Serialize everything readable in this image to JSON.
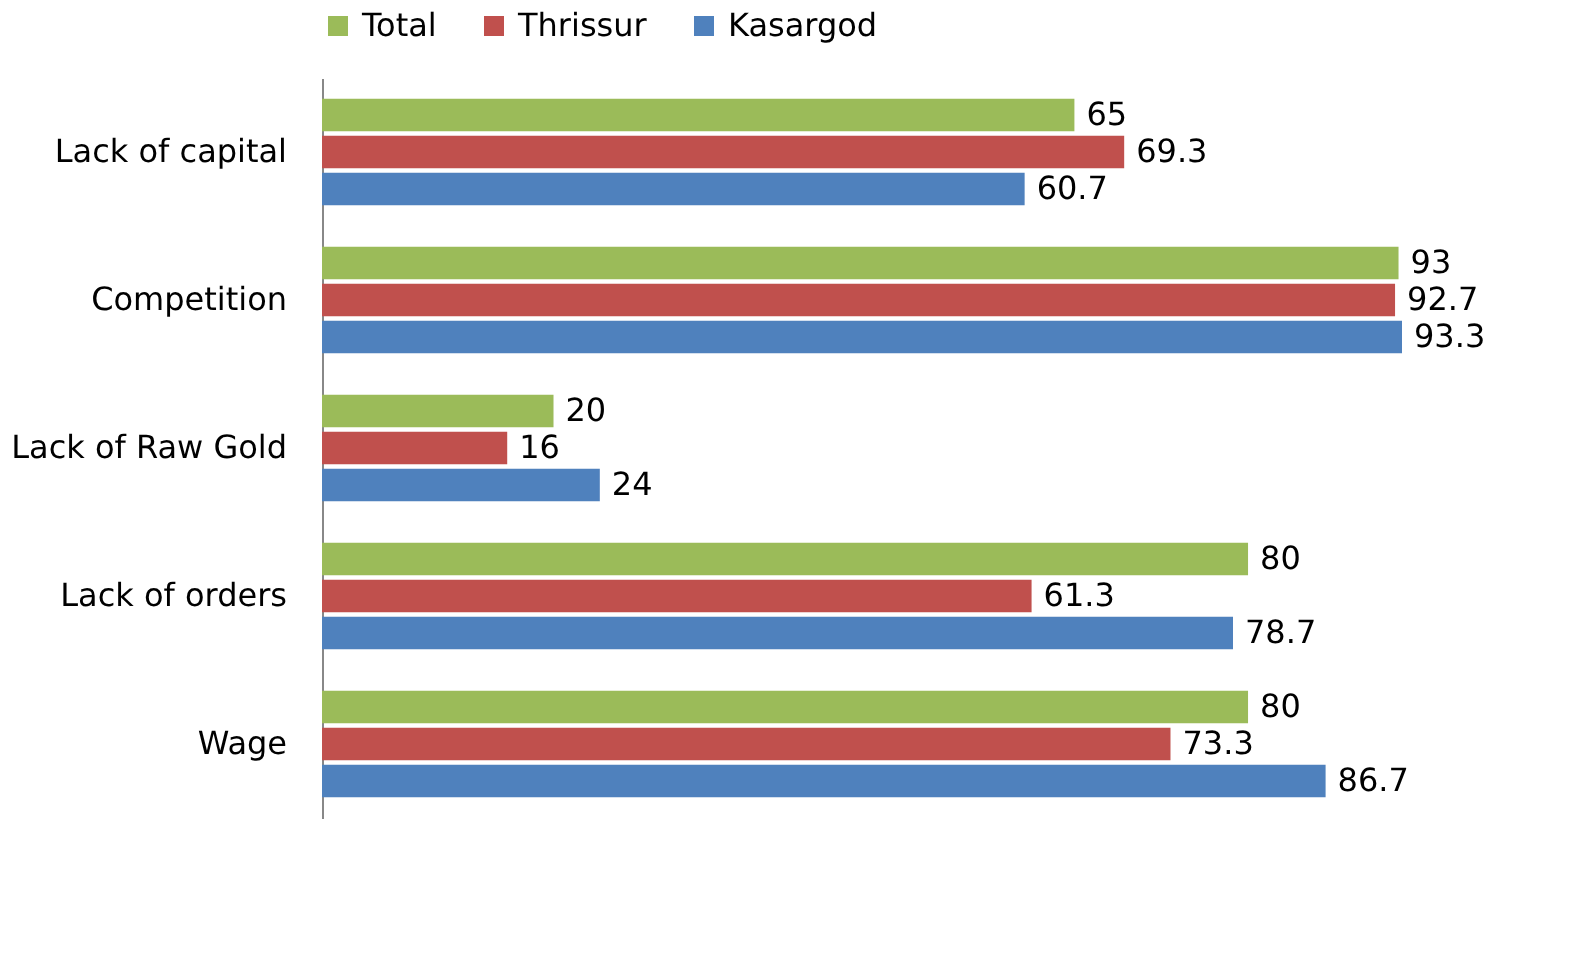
{
  "chart_data": {
    "type": "bar",
    "orientation": "horizontal",
    "categories": [
      "Lack of capital",
      "Competition",
      "Lack of Raw Gold",
      "Lack of orders",
      "Wage"
    ],
    "series": [
      {
        "name": "Total",
        "color": "#9bbb59",
        "values": [
          65,
          93,
          20,
          80,
          80
        ]
      },
      {
        "name": "Thrissur",
        "color": "#c0504d",
        "values": [
          69.3,
          92.7,
          16,
          61.3,
          73.3
        ]
      },
      {
        "name": "Kasargod",
        "color": "#4f81bd",
        "values": [
          60.7,
          93.3,
          24,
          78.7,
          86.7
        ]
      }
    ],
    "data_labels": true,
    "legend": "top"
  }
}
